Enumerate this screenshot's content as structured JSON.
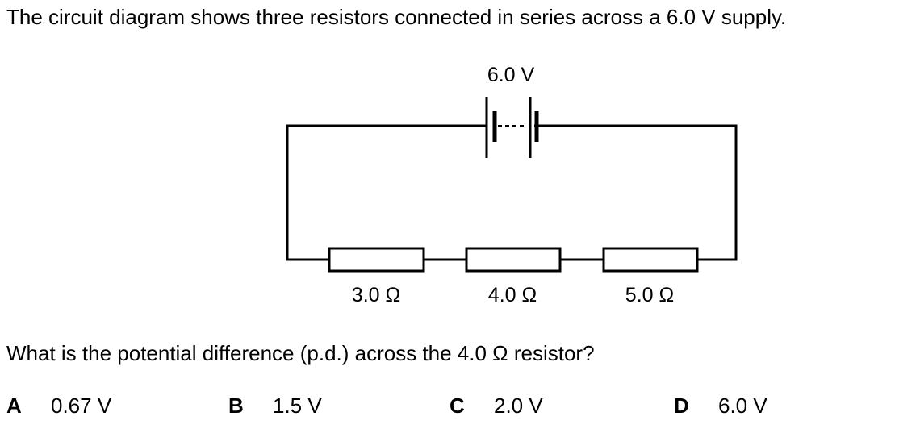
{
  "intro": "The circuit diagram shows three resistors connected in series across a 6.0 V supply.",
  "diagram": {
    "supply_label": "6.0 V",
    "resistors": [
      "3.0 Ω",
      "4.0 Ω",
      "5.0 Ω"
    ]
  },
  "question": "What is the potential difference (p.d.) across the 4.0 Ω resistor?",
  "options": [
    {
      "letter": "A",
      "text": "0.67 V"
    },
    {
      "letter": "B",
      "text": "1.5 V"
    },
    {
      "letter": "C",
      "text": "2.0 V"
    },
    {
      "letter": "D",
      "text": "6.0 V"
    }
  ]
}
